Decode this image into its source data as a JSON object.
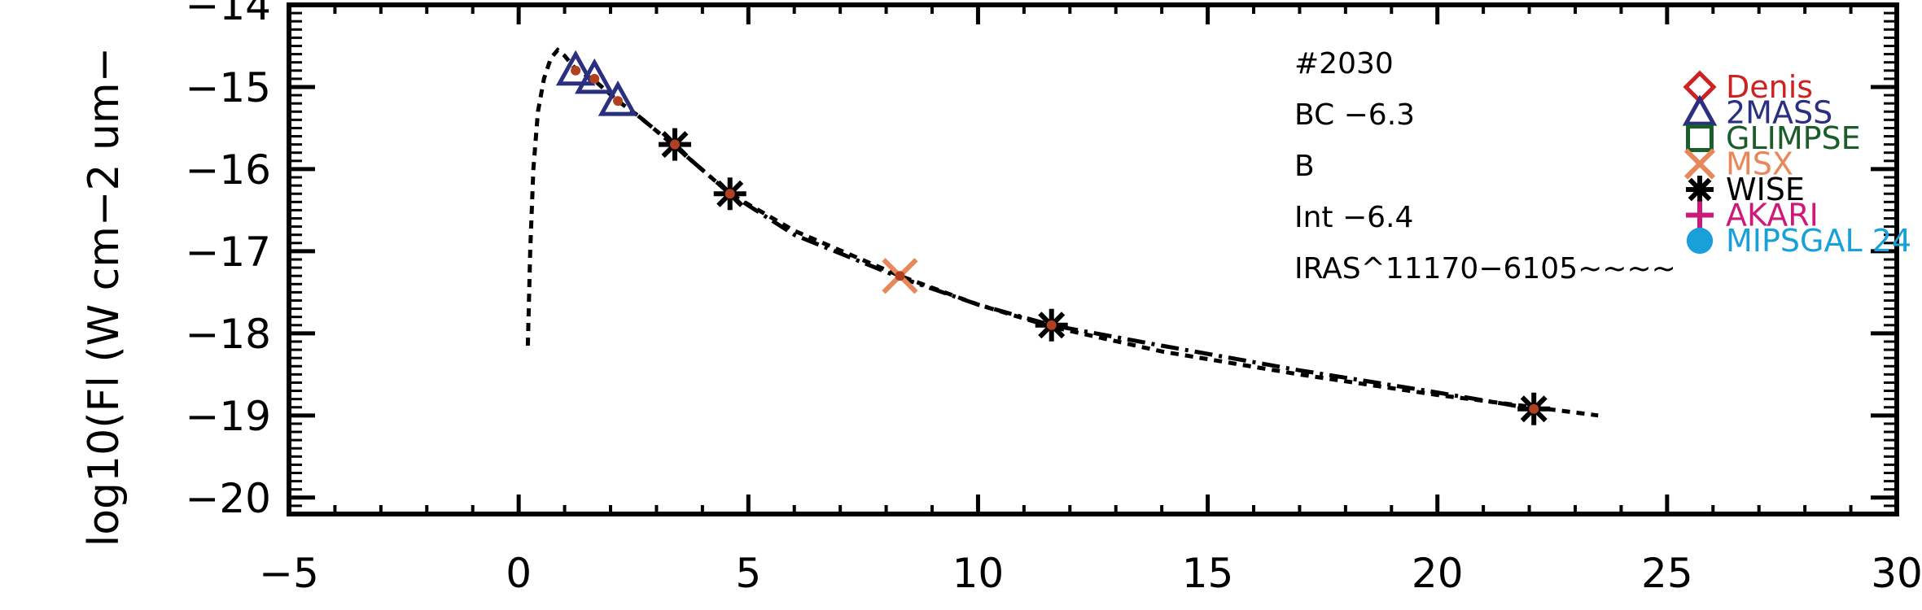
{
  "chart_data": {
    "type": "scatter",
    "title": "",
    "xlabel": "",
    "ylabel": "log10(Fl (W cm−2 um−",
    "xlim": [
      -5,
      30
    ],
    "ylim": [
      -20.2,
      -14
    ],
    "x_ticks": [
      -5,
      0,
      5,
      10,
      15,
      20,
      25,
      30
    ],
    "x_tick_labels": [
      "−5",
      "0",
      "5",
      "10",
      "15",
      "20",
      "25",
      "30"
    ],
    "y_ticks": [
      -20,
      -19,
      -18,
      -17,
      -16,
      -15,
      -14
    ],
    "y_tick_labels": [
      "−20",
      "−19",
      "−18",
      "−17",
      "−16",
      "−15",
      "−14"
    ],
    "grid": false,
    "legend_position": "right",
    "annotations": [
      "#2030",
      "BC −6.3",
      "B",
      "Int −6.4",
      "IRAS^11170−6105~~~~"
    ],
    "series": [
      {
        "name": "Denis",
        "marker": "diamond",
        "color": "#cc2222",
        "x": [],
        "y": []
      },
      {
        "name": "2MASS",
        "marker": "triangle",
        "color": "#2a2f80",
        "x": [
          1.24,
          1.65,
          2.16
        ],
        "y": [
          -14.8,
          -14.9,
          -15.17
        ]
      },
      {
        "name": "GLIMPSE",
        "marker": "square",
        "color": "#1a5c2a",
        "x": [],
        "y": []
      },
      {
        "name": "MSX",
        "marker": "x",
        "color": "#e8875a",
        "x": [
          8.3
        ],
        "y": [
          -17.3
        ]
      },
      {
        "name": "WISE",
        "marker": "asterisk",
        "color": "#000000",
        "x": [
          3.4,
          4.6,
          11.6,
          22.1
        ],
        "y": [
          -15.7,
          -16.3,
          -17.9,
          -18.92
        ]
      },
      {
        "name": "AKARI",
        "marker": "plus",
        "color": "#cc1a7a",
        "x": [],
        "y": []
      },
      {
        "name": "MIPSGAL 24",
        "marker": "circle",
        "color": "#1aa0d8",
        "x": [],
        "y": []
      }
    ],
    "model_points": {
      "x": [
        1.24,
        1.65,
        2.16,
        3.4,
        4.6,
        8.3,
        11.6,
        22.1
      ],
      "y": [
        -14.8,
        -14.9,
        -15.17,
        -15.7,
        -16.3,
        -17.3,
        -17.9,
        -18.92
      ],
      "color": "#b04020"
    },
    "curves": [
      {
        "style": "dashed",
        "x": [
          0.2,
          0.25,
          0.32,
          0.42,
          0.55,
          0.7,
          0.85,
          1.0,
          1.24,
          1.65,
          2.16,
          2.6,
          3.4,
          4.6,
          6.0,
          8.3,
          10.0,
          11.6,
          14.0,
          17.0,
          20.0,
          22.1,
          23.5
        ],
        "y": [
          -18.15,
          -17.0,
          -16.0,
          -15.3,
          -14.9,
          -14.65,
          -14.55,
          -14.62,
          -14.78,
          -14.92,
          -15.17,
          -15.35,
          -15.72,
          -16.3,
          -16.75,
          -17.3,
          -17.65,
          -17.92,
          -18.22,
          -18.5,
          -18.75,
          -18.9,
          -19.0
        ]
      },
      {
        "style": "dashdot",
        "x": [
          2.6,
          3.4,
          4.6,
          6.0,
          8.3,
          10.0,
          11.6,
          14.0,
          17.0,
          20.0,
          22.1
        ],
        "y": [
          -15.35,
          -15.72,
          -16.3,
          -16.8,
          -17.32,
          -17.65,
          -17.9,
          -18.15,
          -18.45,
          -18.72,
          -18.92
        ]
      }
    ]
  },
  "colors": {
    "axis": "#000000",
    "background": "#ffffff"
  }
}
